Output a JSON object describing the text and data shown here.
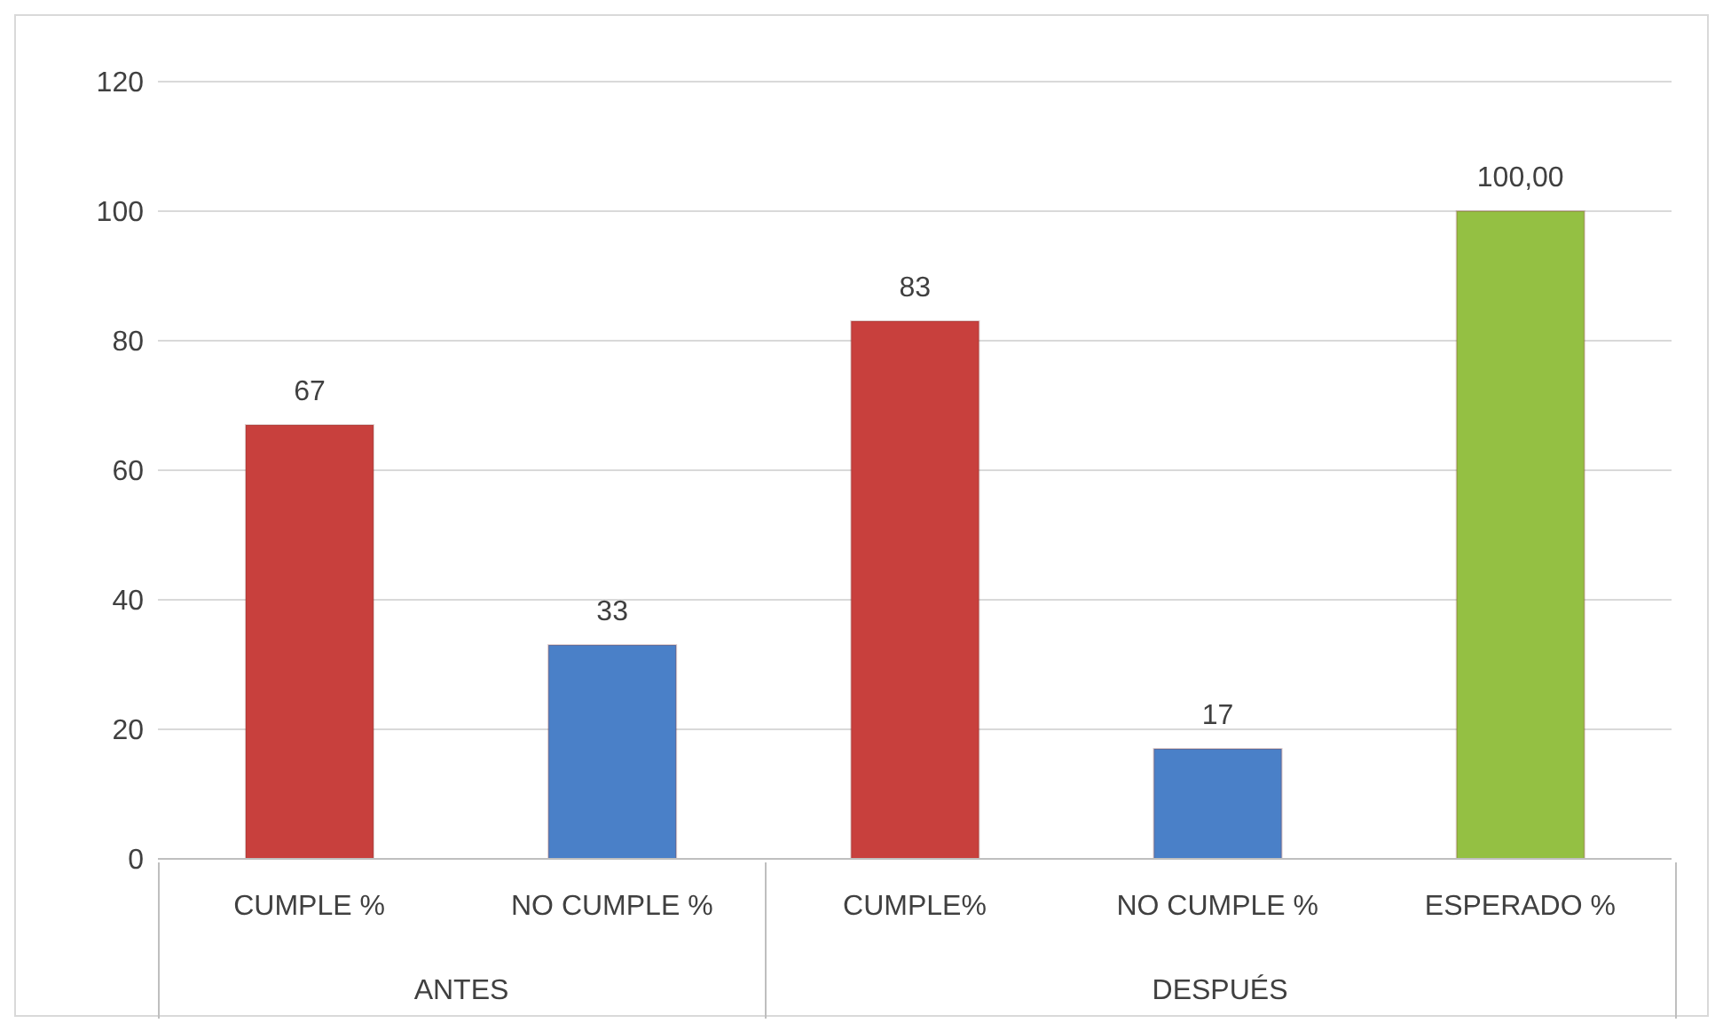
{
  "chart_data": {
    "type": "bar",
    "categories": [
      "CUMPLE %",
      "NO CUMPLE %",
      "CUMPLE%",
      "NO CUMPLE %",
      "ESPERADO %"
    ],
    "values": [
      67,
      33,
      83,
      17,
      100
    ],
    "colors": [
      "#c8403d",
      "#4a80c8",
      "#c8403d",
      "#4a80c8",
      "#94c043"
    ],
    "value_labels": [
      "67",
      "33",
      "83",
      "17",
      "100,00"
    ],
    "ylim": [
      0,
      120
    ],
    "yticks": [
      0,
      20,
      40,
      60,
      80,
      100,
      120
    ],
    "grid": "y",
    "annotations": [
      "ANTES",
      "DESPUÉS"
    ]
  }
}
